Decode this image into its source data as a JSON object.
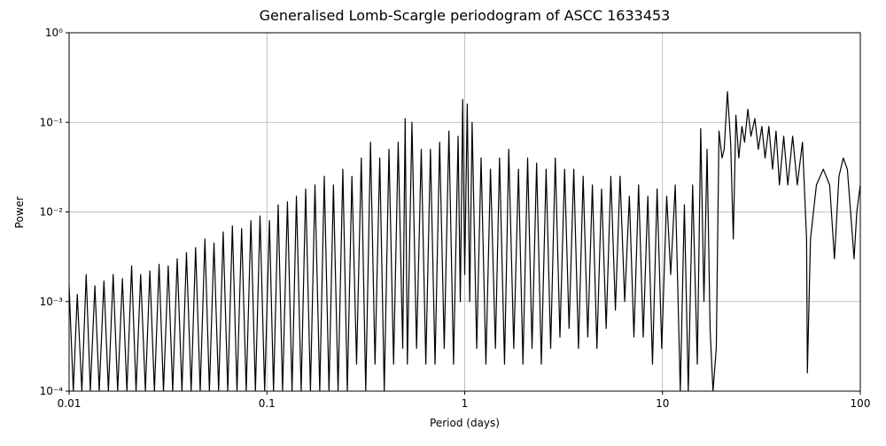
{
  "chart_data": {
    "type": "line",
    "title": "Generalised Lomb-Scargle periodogram of ASCC 1633453",
    "x_label": "Period (days)",
    "y_label": "Power",
    "xlog": true,
    "ylog": true,
    "grid": true,
    "xlim": [
      0.01,
      100
    ],
    "ylim": [
      0.0001,
      1
    ],
    "xticks": [
      0.01,
      0.1,
      1,
      10,
      100
    ],
    "yticks": [
      {
        "value": 0.0001,
        "label": "10⁻⁴"
      },
      {
        "value": 0.001,
        "label": "10⁻³"
      },
      {
        "value": 0.01,
        "label": "10⁻²"
      },
      {
        "value": 0.1,
        "label": "10⁻¹"
      },
      {
        "value": 1,
        "label": "10⁰"
      }
    ],
    "x": [
      0.01,
      0.0105,
      0.011,
      0.0116,
      0.0122,
      0.0128,
      0.0135,
      0.0142,
      0.015,
      0.0158,
      0.0167,
      0.0176,
      0.0186,
      0.0196,
      0.0207,
      0.0218,
      0.023,
      0.0243,
      0.0256,
      0.027,
      0.0285,
      0.03,
      0.0317,
      0.0334,
      0.0352,
      0.0372,
      0.0392,
      0.0414,
      0.0436,
      0.046,
      0.0486,
      0.0512,
      0.054,
      0.057,
      0.0601,
      0.0634,
      0.0669,
      0.0706,
      0.0745,
      0.0786,
      0.083,
      0.0875,
      0.0923,
      0.0974,
      0.103,
      0.108,
      0.114,
      0.12,
      0.127,
      0.134,
      0.141,
      0.149,
      0.157,
      0.166,
      0.175,
      0.185,
      0.195,
      0.206,
      0.217,
      0.229,
      0.242,
      0.255,
      0.269,
      0.284,
      0.3,
      0.316,
      0.334,
      0.352,
      0.372,
      0.392,
      0.414,
      0.437,
      0.461,
      0.486,
      0.5,
      0.513,
      0.541,
      0.571,
      0.603,
      0.636,
      0.671,
      0.708,
      0.747,
      0.788,
      0.832,
      0.878,
      0.926,
      0.95,
      0.977,
      1.0,
      1.03,
      1.06,
      1.09,
      1.15,
      1.21,
      1.28,
      1.35,
      1.43,
      1.5,
      1.59,
      1.67,
      1.77,
      1.87,
      1.97,
      2.08,
      2.19,
      2.31,
      2.44,
      2.58,
      2.72,
      2.87,
      3.03,
      3.2,
      3.37,
      3.56,
      3.76,
      3.97,
      4.19,
      4.42,
      4.66,
      4.92,
      5.19,
      5.48,
      5.78,
      6.1,
      6.44,
      6.8,
      7.17,
      7.57,
      7.99,
      8.43,
      8.9,
      9.39,
      9.91,
      10.5,
      11,
      11.6,
      12.3,
      12.9,
      13.5,
      14.2,
      15,
      15.6,
      16.2,
      16.8,
      17.4,
      18,
      18.7,
      19.3,
      20,
      20.5,
      21.3,
      22.1,
      22.8,
      23.5,
      24.3,
      25.2,
      26,
      27,
      28,
      29.3,
      30.5,
      31.8,
      33,
      34.5,
      36,
      37.5,
      39,
      41,
      43,
      45.5,
      48,
      51,
      53.5,
      54,
      56,
      60,
      65,
      70,
      74,
      78,
      82,
      86,
      90,
      93,
      96,
      100
    ],
    "series": [
      {
        "color": "#000000",
        "values": [
          0.0015,
          0.0001,
          0.0012,
          0.0001,
          0.002,
          0.0001,
          0.0015,
          0.0001,
          0.0017,
          0.0001,
          0.002,
          0.0001,
          0.0018,
          0.0001,
          0.0025,
          0.0001,
          0.002,
          0.0001,
          0.0022,
          0.0001,
          0.0026,
          0.0001,
          0.0025,
          0.0001,
          0.003,
          0.0001,
          0.0035,
          0.0001,
          0.004,
          0.0001,
          0.005,
          0.0001,
          0.0045,
          0.0001,
          0.006,
          0.0001,
          0.007,
          0.0001,
          0.0065,
          0.0001,
          0.008,
          0.0001,
          0.009,
          0.0001,
          0.008,
          0.0001,
          0.012,
          0.0001,
          0.013,
          0.0001,
          0.015,
          0.0001,
          0.018,
          0.0001,
          0.02,
          0.0001,
          0.025,
          0.0001,
          0.02,
          0.0001,
          0.03,
          0.0001,
          0.025,
          0.0002,
          0.04,
          0.0001,
          0.06,
          0.0002,
          0.04,
          0.0001,
          0.05,
          0.0002,
          0.06,
          0.0003,
          0.11,
          0.0002,
          0.1,
          0.0003,
          0.05,
          0.0002,
          0.05,
          0.0002,
          0.06,
          0.0003,
          0.08,
          0.0002,
          0.07,
          0.001,
          0.18,
          0.002,
          0.16,
          0.001,
          0.1,
          0.0003,
          0.04,
          0.0002,
          0.03,
          0.0003,
          0.04,
          0.0002,
          0.05,
          0.0003,
          0.03,
          0.0002,
          0.04,
          0.0003,
          0.035,
          0.0002,
          0.03,
          0.0003,
          0.04,
          0.0004,
          0.03,
          0.0005,
          0.03,
          0.0003,
          0.025,
          0.0004,
          0.02,
          0.0003,
          0.018,
          0.0005,
          0.025,
          0.0008,
          0.025,
          0.001,
          0.015,
          0.0004,
          0.02,
          0.0004,
          0.015,
          0.0002,
          0.018,
          0.0003,
          0.015,
          0.002,
          0.02,
          0.0001,
          0.012,
          0.0001,
          0.02,
          0.0002,
          0.085,
          0.001,
          0.05,
          0.0005,
          0.0001,
          0.0003,
          0.08,
          0.04,
          0.05,
          0.22,
          0.06,
          0.005,
          0.12,
          0.04,
          0.09,
          0.06,
          0.14,
          0.07,
          0.11,
          0.05,
          0.09,
          0.04,
          0.09,
          0.03,
          0.08,
          0.02,
          0.07,
          0.02,
          0.07,
          0.02,
          0.06,
          0.005,
          0.00016,
          0.005,
          0.02,
          0.03,
          0.02,
          0.003,
          0.025,
          0.04,
          0.03,
          0.008,
          0.003,
          0.01,
          0.02
        ]
      }
    ]
  }
}
